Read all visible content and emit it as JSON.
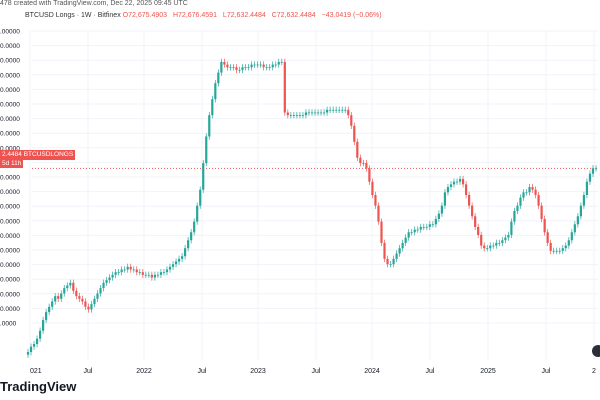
{
  "header": {
    "watermark": "478 created with TradingView.com, Dec 22, 2025 09:45 UTC"
  },
  "legend": {
    "symbol": "BTCUSD Longs · 1W · Bitfinex",
    "open": "O72,675.4903",
    "high": "H72,676.4591",
    "low": "L72,632.4484",
    "close": "C72,632.4484",
    "change": "−43.0419 (−0.06%)"
  },
  "price_tag": {
    "value": "2.4484",
    "label": "BTCUSDLONGS",
    "sub": "5d 11h"
  },
  "brand": "TradingView",
  "colors": {
    "up": "#26a69a",
    "down": "#ef5350",
    "price_line": "#ef5350"
  },
  "chart_data": {
    "type": "line",
    "y_tick_labels": [
      ".00000",
      "0.0000",
      "0.0000",
      "0.0000",
      "0.0000",
      "0.0000",
      "0.0000",
      "0.0000",
      "0.0000",
      "0.0000",
      "0.0000",
      "0.0000",
      "0.0000",
      "0.0000",
      "0.0000",
      "0.0000",
      "0.0000",
      "0.0000",
      "0.0000",
      "0.0000",
      ".0000"
    ],
    "x_tick_labels": [
      "021",
      "Jul",
      "2022",
      "Jul",
      "2023",
      "Jul",
      "2024",
      "Jul",
      "2025",
      "Jul",
      "2"
    ],
    "series": [
      {
        "values": [
          -9,
          -7,
          -6,
          -4,
          -1,
          3,
          6,
          8,
          10,
          12,
          11,
          13,
          15,
          16,
          17,
          14,
          12,
          11,
          10,
          8,
          7,
          9,
          11,
          13,
          15,
          17,
          18,
          19,
          20,
          21,
          21,
          22,
          22,
          23,
          22,
          22,
          21,
          21,
          20,
          20,
          20,
          19,
          20,
          20,
          21,
          21,
          22,
          23,
          24,
          25,
          26,
          27,
          30,
          33,
          36,
          40,
          46,
          52,
          62,
          72,
          80,
          86,
          92,
          96,
          100,
          99,
          98,
          98,
          98,
          97,
          97,
          98,
          98,
          98,
          99,
          99,
          99,
          99,
          98,
          98,
          98,
          99,
          99,
          100,
          100,
          81,
          80,
          80,
          80,
          80,
          80,
          80,
          81,
          81,
          81,
          81,
          81,
          81,
          81,
          82,
          82,
          82,
          82,
          82,
          82,
          82,
          80,
          76,
          70,
          64,
          62,
          62,
          60,
          55,
          50,
          46,
          40,
          32,
          26,
          24,
          24,
          26,
          28,
          30,
          32,
          34,
          36,
          36,
          37,
          37,
          38,
          38,
          38,
          39,
          39,
          41,
          43,
          46,
          51,
          53,
          54,
          55,
          55,
          56,
          54,
          50,
          46,
          42,
          38,
          35,
          31,
          30,
          30,
          31,
          31,
          32,
          32,
          33,
          34,
          35,
          40,
          44,
          46,
          49,
          51,
          51,
          53,
          52,
          50,
          46,
          41,
          36,
          32,
          29,
          29,
          29,
          29,
          30,
          31,
          33,
          36,
          39,
          42,
          46,
          50,
          55,
          58,
          60,
          60
        ]
      }
    ]
  }
}
